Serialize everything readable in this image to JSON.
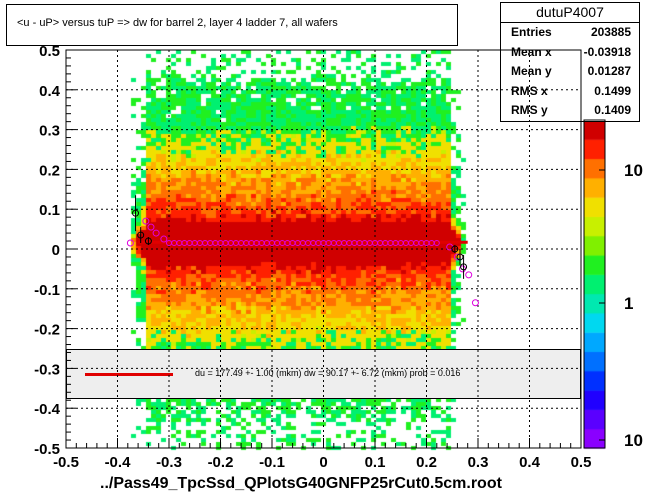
{
  "title": "<u - uP>       versus  tuP =>  dw for barrel 2, layer 4 ladder 7, all wafers",
  "stats": {
    "name": "dutuP4007",
    "rows": [
      {
        "label": "Entries",
        "value": "203885"
      },
      {
        "label": "Mean x",
        "value": "-0.03918"
      },
      {
        "label": "Mean y",
        "value": "0.01287"
      },
      {
        "label": "RMS x",
        "value": "0.1499"
      },
      {
        "label": "RMS y",
        "value": "0.1409"
      }
    ]
  },
  "fit_text": "du =  177.49 +-   1.00 (mkm) dw =   90.17 +-  6.72 (mkm) prob = 0.016",
  "xtitle": "../Pass49_TpcSsd_QPlotsG40GNFP25rCut0.5cm.root",
  "chart_data": {
    "type": "heatmap",
    "xlim": [
      -0.5,
      0.5
    ],
    "ylim": [
      -0.5,
      0.5
    ],
    "xticks": [
      "-0.5",
      "-0.4",
      "-0.3",
      "-0.2",
      "-0.1",
      "0",
      "0.1",
      "0.2",
      "0.3",
      "0.4",
      "0.5"
    ],
    "yticks": [
      "-0.5",
      "-0.4",
      "-0.3",
      "-0.2",
      "-0.1",
      "0",
      "0.1",
      "0.2",
      "0.3",
      "0.4",
      "0.5"
    ],
    "grid": true,
    "colorbar_labels": [
      "10",
      "1",
      "10"
    ],
    "fit_line": {
      "x": [
        -0.36,
        0.28
      ],
      "y": [
        0.017,
        0.017
      ],
      "color": "#e00000"
    },
    "black_profile": [
      {
        "x": -0.365,
        "y": 0.09,
        "err": 0.045
      },
      {
        "x": -0.355,
        "y": 0.035,
        "err": 0.02
      },
      {
        "x": -0.34,
        "y": 0.02,
        "err": 0.01
      },
      {
        "x": 0.255,
        "y": 0.0,
        "err": 0.01
      },
      {
        "x": 0.265,
        "y": -0.02,
        "err": 0.02
      },
      {
        "x": 0.272,
        "y": -0.045,
        "err": 0.03
      }
    ],
    "magenta_profile": [
      {
        "x": -0.375,
        "y": 0.015
      },
      {
        "x": -0.345,
        "y": 0.07
      },
      {
        "x": -0.335,
        "y": 0.055
      },
      {
        "x": -0.325,
        "y": 0.04
      },
      {
        "x": -0.31,
        "y": 0.025
      },
      {
        "x": 0.245,
        "y": 0.005
      },
      {
        "x": 0.26,
        "y": -0.02
      },
      {
        "x": 0.27,
        "y": -0.05
      },
      {
        "x": 0.282,
        "y": -0.065
      },
      {
        "x": 0.295,
        "y": -0.135
      }
    ]
  }
}
